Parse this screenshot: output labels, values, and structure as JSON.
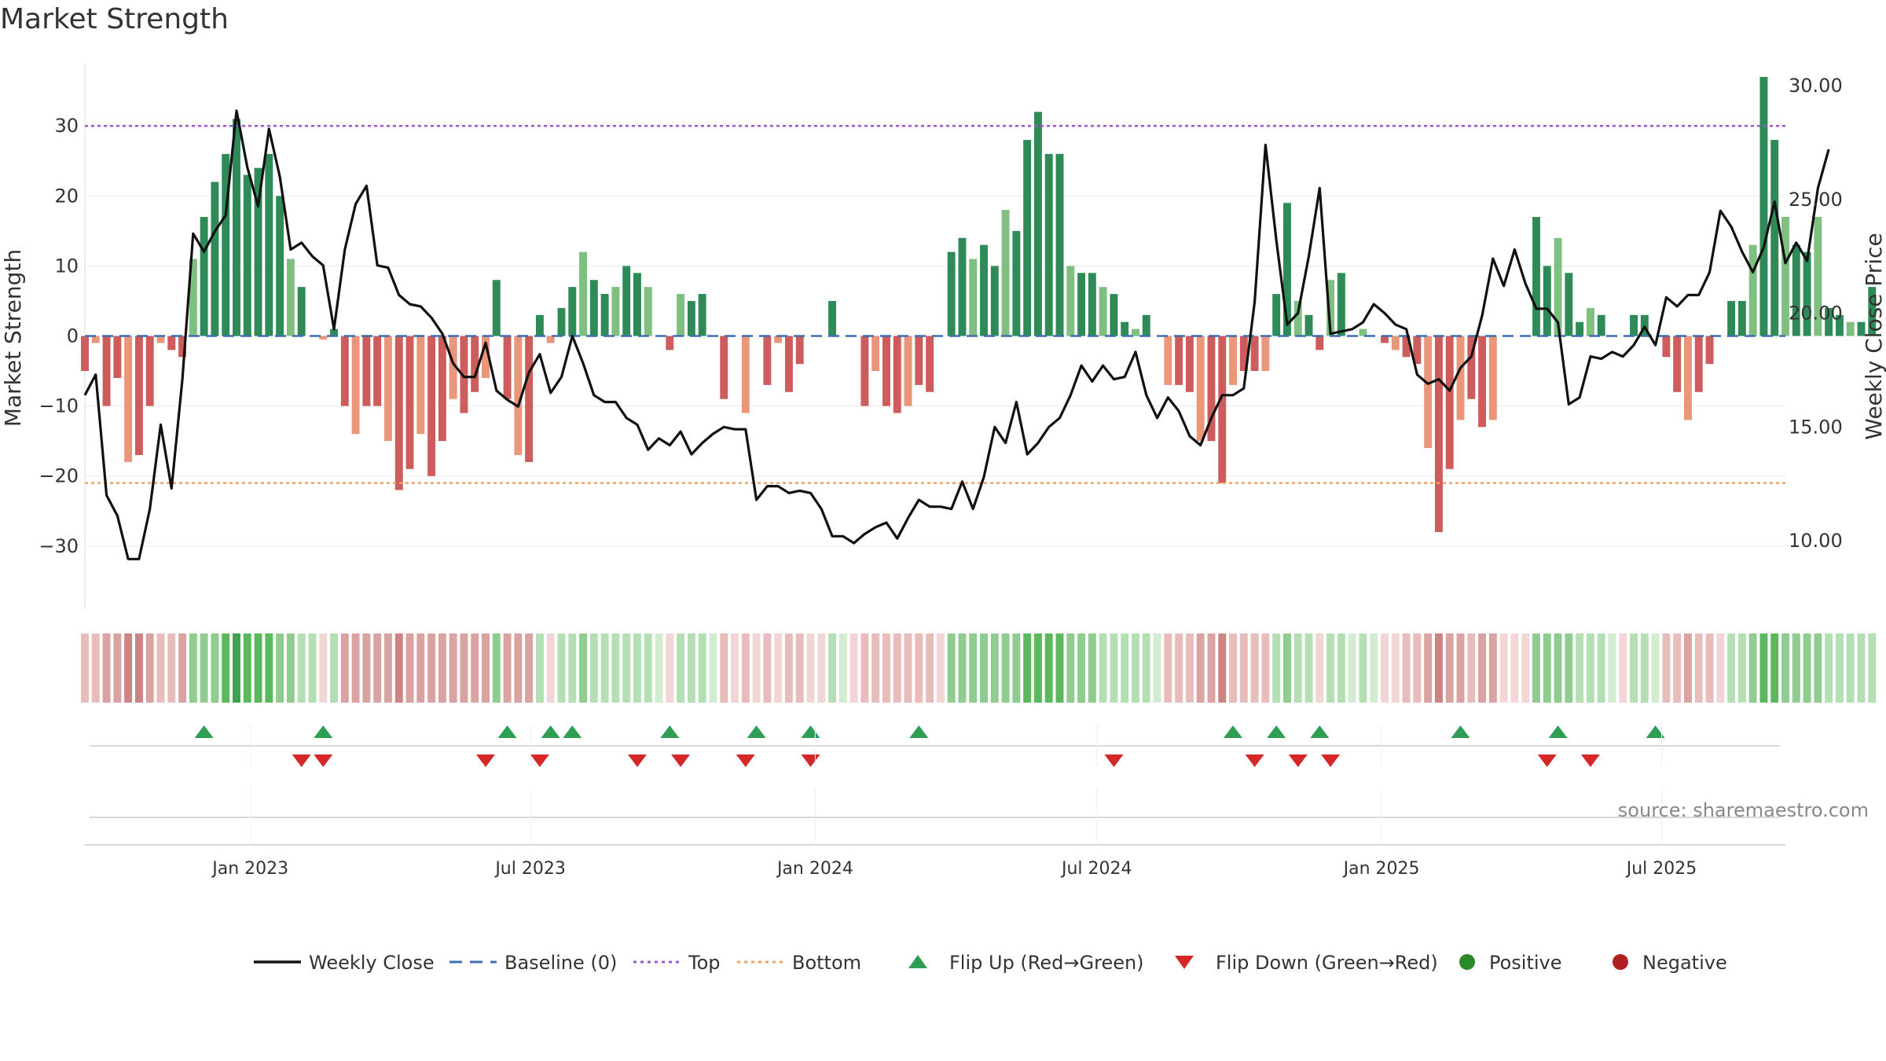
{
  "chart_data": {
    "type": "bar",
    "title": "Market Strength",
    "ylabel": "Market Strength",
    "y2label": "Weekly Close Price",
    "ylim": [
      -39,
      39
    ],
    "y2lim": [
      7.0,
      31.0
    ],
    "yticks": [
      30,
      20,
      10,
      0,
      -10,
      -20,
      -30
    ],
    "y2ticks": [
      "30.00",
      "25.00",
      "20.00",
      "15.00",
      "10.00"
    ],
    "x_start": "2022-09-16",
    "x_end": "2025-09-19",
    "x_step_days": 7,
    "xticks": [
      {
        "label": "Jan 2023",
        "date": "2023-01-01"
      },
      {
        "label": "Jul 2023",
        "date": "2023-07-01"
      },
      {
        "label": "Jan 2024",
        "date": "2024-01-01"
      },
      {
        "label": "Jul 2024",
        "date": "2024-07-01"
      },
      {
        "label": "Jan 2025",
        "date": "2025-01-01"
      },
      {
        "label": "Jul 2025",
        "date": "2025-07-01"
      }
    ],
    "top_line": 30,
    "bottom_line": -21,
    "strength": [
      -5,
      -1,
      -10,
      -6,
      -18,
      -17,
      -10,
      -1,
      -2,
      -3,
      11,
      17,
      22,
      26,
      31,
      23,
      24,
      26,
      20,
      11,
      7,
      0,
      -0.5,
      1,
      -10,
      -14,
      -10,
      -10,
      -15,
      -22,
      -19,
      -14,
      -20,
      -15,
      -9,
      -11,
      -8,
      -6,
      8,
      -9,
      -17,
      -18,
      3,
      -1,
      4,
      7,
      12,
      8,
      6,
      7,
      10,
      9,
      7,
      0,
      -2,
      6,
      5,
      6,
      0,
      -9,
      0,
      -11,
      0,
      -7,
      -1,
      -8,
      -4,
      0,
      0,
      5,
      0,
      0,
      -10,
      -5,
      -10,
      -11,
      -10,
      -7,
      -8,
      0,
      12,
      14,
      11,
      13,
      10,
      18,
      15,
      28,
      32,
      26,
      26,
      10,
      9,
      9,
      7,
      6,
      2,
      1,
      3,
      0,
      -7,
      -7,
      -8,
      -15,
      -15,
      -21,
      -7,
      -5,
      -5,
      -5,
      6,
      19,
      5,
      3,
      -2,
      8,
      9,
      0,
      1,
      0,
      -1,
      -2,
      -3,
      -4,
      -16,
      -28,
      -19,
      -12,
      -9,
      -13,
      -12,
      0,
      0,
      0,
      17,
      10,
      14,
      9,
      2,
      4,
      3,
      0,
      0,
      3,
      3,
      0,
      -3,
      -8,
      -12,
      -8,
      -4,
      0,
      5,
      5,
      13,
      37,
      28,
      17,
      13,
      12,
      17,
      4,
      3,
      2,
      2,
      7
    ],
    "close": [
      16.4,
      17.3,
      12.0,
      11.1,
      9.2,
      9.2,
      11.4,
      15.1,
      12.3,
      17.1,
      23.5,
      22.7,
      23.6,
      24.3,
      28.9,
      26.4,
      24.7,
      28.1,
      26.0,
      22.8,
      23.1,
      22.5,
      22.1,
      19.3,
      22.8,
      24.8,
      25.6,
      22.1,
      22.0,
      20.8,
      20.4,
      20.3,
      19.8,
      19.1,
      17.8,
      17.2,
      17.2,
      18.7,
      16.6,
      16.2,
      15.9,
      17.4,
      18.2,
      16.5,
      17.2,
      19.0,
      17.8,
      16.4,
      16.1,
      16.1,
      15.4,
      15.1,
      14.0,
      14.5,
      14.2,
      14.8,
      13.8,
      14.3,
      14.7,
      15.0,
      14.9,
      14.9,
      11.8,
      12.4,
      12.4,
      12.1,
      12.2,
      12.1,
      11.4,
      10.2,
      10.2,
      9.9,
      10.3,
      10.6,
      10.8,
      10.1,
      11.0,
      11.8,
      11.5,
      11.5,
      11.4,
      12.6,
      11.4,
      12.8,
      15.0,
      14.3,
      16.1,
      13.8,
      14.3,
      15.0,
      15.4,
      16.4,
      17.7,
      17.0,
      17.7,
      17.1,
      17.2,
      18.3,
      16.4,
      15.4,
      16.3,
      15.7,
      14.6,
      14.2,
      15.4,
      16.4,
      16.4,
      16.7,
      20.5,
      27.4,
      23.2,
      19.5,
      20.0,
      22.5,
      25.5,
      19.1,
      19.2,
      19.3,
      19.6,
      20.4,
      20.0,
      19.5,
      19.3,
      17.3,
      16.9,
      17.1,
      16.6,
      17.6,
      18.1,
      19.9,
      22.4,
      21.2,
      22.8,
      21.3,
      20.2,
      20.2,
      19.6,
      16.0,
      16.3,
      18.1,
      18.0,
      18.3,
      18.1,
      18.6,
      19.4,
      18.6,
      20.7,
      20.3,
      20.8,
      20.8,
      21.8,
      24.5,
      23.8,
      22.7,
      21.8,
      22.9,
      24.9,
      22.2,
      23.1,
      22.3,
      25.5,
      27.2
    ],
    "regime_intensity": [
      1,
      1,
      2,
      2,
      3,
      3,
      2,
      1,
      1,
      2,
      2,
      2,
      2,
      3,
      4,
      3,
      3,
      3,
      2,
      2,
      1,
      1,
      0,
      1,
      2,
      2,
      2,
      2,
      2,
      3,
      2,
      2,
      2,
      2,
      2,
      2,
      2,
      2,
      2,
      2,
      2,
      2,
      1,
      0,
      1,
      1,
      2,
      1,
      1,
      1,
      1,
      1,
      1,
      0,
      0,
      1,
      1,
      1,
      0,
      1,
      0,
      1,
      0,
      1,
      0,
      1,
      1,
      0,
      0,
      1,
      0,
      0,
      1,
      1,
      1,
      1,
      1,
      1,
      1,
      0,
      2,
      2,
      2,
      2,
      2,
      2,
      2,
      3,
      3,
      3,
      3,
      2,
      2,
      2,
      1,
      1,
      1,
      1,
      1,
      0,
      1,
      1,
      1,
      2,
      2,
      3,
      1,
      1,
      1,
      1,
      1,
      2,
      1,
      1,
      0,
      1,
      1,
      0,
      1,
      0,
      0,
      0,
      1,
      1,
      2,
      3,
      2,
      2,
      1,
      2,
      2,
      0,
      0,
      0,
      2,
      2,
      2,
      2,
      1,
      1,
      1,
      0,
      0,
      1,
      1,
      0,
      1,
      1,
      2,
      1,
      1,
      0,
      1,
      1,
      2,
      3,
      3,
      2,
      2,
      2,
      2,
      1,
      1,
      1,
      1,
      1
    ],
    "flip_up": [
      "2022-12-02",
      "2023-02-17",
      "2023-06-16",
      "2023-07-14",
      "2023-07-28",
      "2023-09-29",
      "2023-11-24",
      "2023-12-29",
      "2024-03-08",
      "2024-09-27",
      "2024-10-25",
      "2024-11-22",
      "2025-02-21",
      "2025-04-25",
      "2025-06-27"
    ],
    "flip_down": [
      "2023-02-03",
      "2023-02-17",
      "2023-06-02",
      "2023-07-07",
      "2023-09-08",
      "2023-10-06",
      "2023-11-17",
      "2023-12-29",
      "2024-07-12",
      "2024-10-11",
      "2024-11-08",
      "2024-11-29",
      "2025-04-18",
      "2025-05-16"
    ],
    "legend": [
      {
        "label": "Weekly Close",
        "kind": "line",
        "color": "#111111"
      },
      {
        "label": "Baseline (0)",
        "kind": "dash",
        "color": "#3b6fb0"
      },
      {
        "label": "Top",
        "kind": "dot",
        "color": "#9b59d0"
      },
      {
        "label": "Bottom",
        "kind": "dot",
        "color": "#f0a060"
      },
      {
        "label": "Flip Up (Red→Green)",
        "kind": "tri-up",
        "color": "#2e9e55"
      },
      {
        "label": "Flip Down (Green→Red)",
        "kind": "tri-down",
        "color": "#d62728"
      },
      {
        "label": "Positive",
        "kind": "circle",
        "color": "#2a8a2a"
      },
      {
        "label": "Negative",
        "kind": "circle",
        "color": "#b02020"
      }
    ],
    "legend_position": "bottom",
    "grid": true
  },
  "colors": {
    "pos_strong": "#2e8b57",
    "pos_light": "#7fbf7f",
    "neg_strong": "#cd5c5c",
    "neg_light": "#e9967a",
    "close_line": "#111111",
    "baseline": "#3b6fb0",
    "top": "#9b59d0",
    "bottom": "#f0a060",
    "flip_up": "#2e9e55",
    "flip_down": "#d62728"
  },
  "source": "source: sharemaestro.com"
}
